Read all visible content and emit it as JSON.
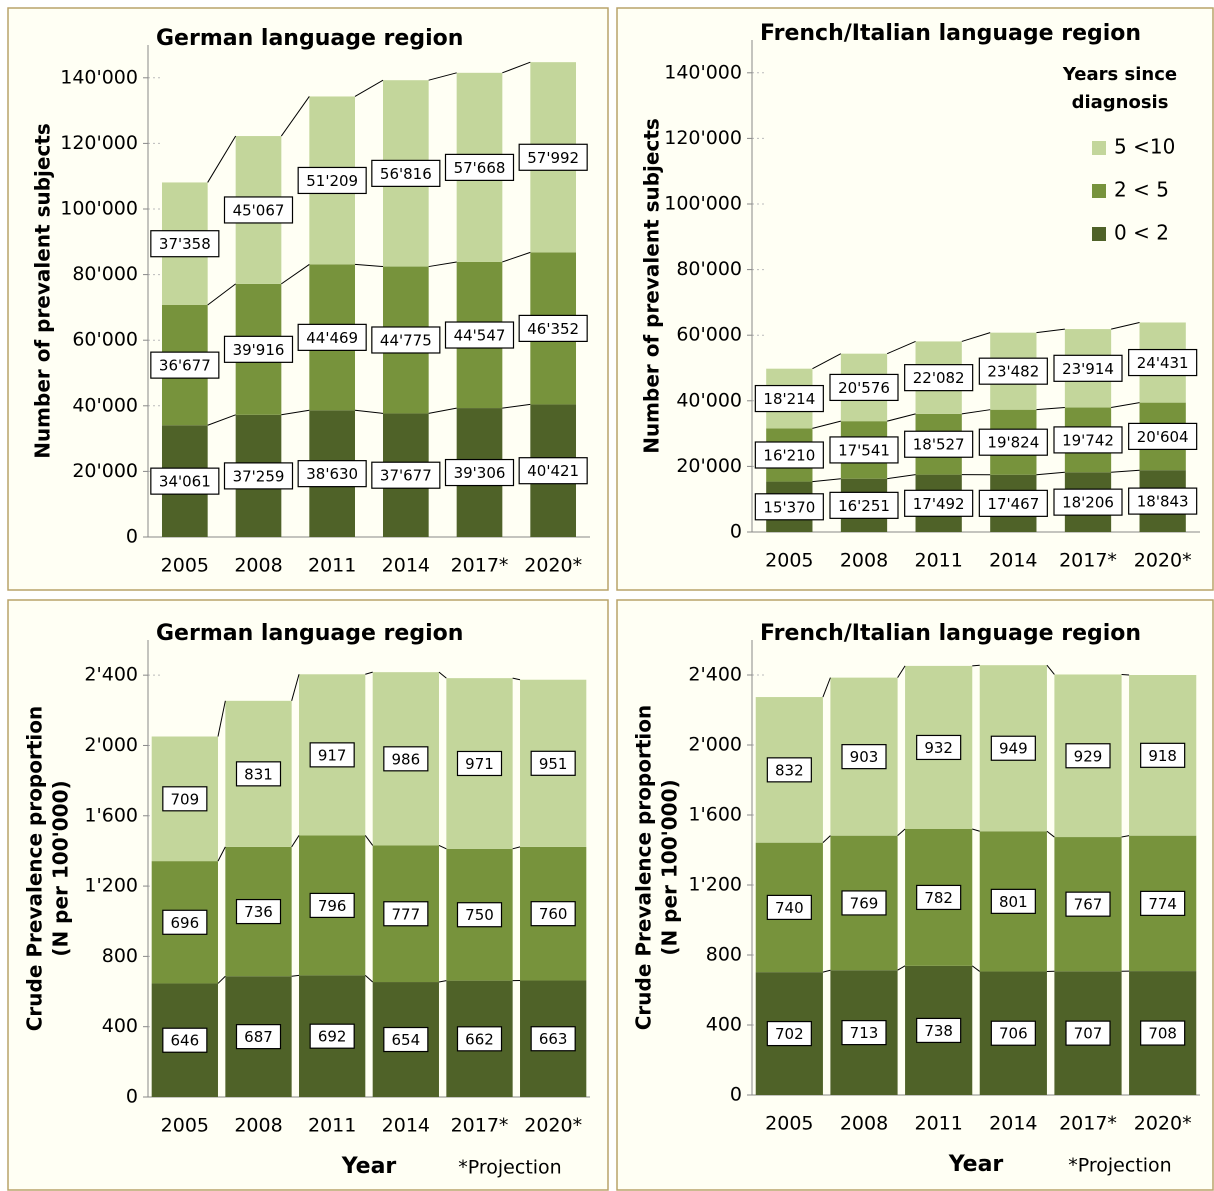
{
  "chart_data": [
    {
      "type": "stacked_bar",
      "title": "German language region",
      "ylabel": "Number of prevalent subjects",
      "categories": [
        "2005",
        "2008",
        "2011",
        "2014",
        "2017*",
        "2020*"
      ],
      "series": [
        {
          "name": "0 < 2",
          "color": "#4f6228",
          "values": [
            34061,
            37259,
            38630,
            37677,
            39306,
            40421
          ],
          "value_labels": [
            "34'061",
            "37'259",
            "38'630",
            "37'677",
            "39'306",
            "40'421"
          ]
        },
        {
          "name": "2 < 5",
          "color": "#77933c",
          "values": [
            36677,
            39916,
            44469,
            44775,
            44547,
            46352
          ],
          "value_labels": [
            "36'677",
            "39'916",
            "44'469",
            "44'775",
            "44'547",
            "46'352"
          ]
        },
        {
          "name": "5 <10",
          "color": "#c3d69b",
          "values": [
            37358,
            45067,
            51209,
            56816,
            57668,
            57992
          ],
          "value_labels": [
            "37'358",
            "45'067",
            "51'209",
            "56'816",
            "57'668",
            "57'992"
          ]
        }
      ],
      "ylim": [
        0,
        150000
      ],
      "yticks": [
        0,
        {
          "value": 20000,
          "label": "20'000"
        },
        {
          "value": 40000,
          "label": "40'000"
        },
        {
          "value": 60000,
          "label": "60'000"
        },
        {
          "value": 80000,
          "label": "80'000"
        },
        {
          "value": 100000,
          "label": "100'000"
        },
        {
          "value": 120000,
          "label": "120'000"
        },
        {
          "value": 140000,
          "label": "140'000"
        }
      ],
      "legend": false
    },
    {
      "type": "stacked_bar",
      "title": "French/Italian language region",
      "ylabel": "Number of prevalent subjects",
      "categories": [
        "2005",
        "2008",
        "2011",
        "2014",
        "2017*",
        "2020*"
      ],
      "series": [
        {
          "name": "0 < 2",
          "color": "#4f6228",
          "values": [
            15370,
            16251,
            17492,
            17467,
            18206,
            18843
          ],
          "value_labels": [
            "15'370",
            "16'251",
            "17'492",
            "17'467",
            "18'206",
            "18'843"
          ]
        },
        {
          "name": "2 < 5",
          "color": "#77933c",
          "values": [
            16210,
            17541,
            18527,
            19824,
            19742,
            20604
          ],
          "value_labels": [
            "16'210",
            "17'541",
            "18'527",
            "19'824",
            "19'742",
            "20'604"
          ]
        },
        {
          "name": "5 <10",
          "color": "#c3d69b",
          "values": [
            18214,
            20576,
            22082,
            23482,
            23914,
            24431
          ],
          "value_labels": [
            "18'214",
            "20'576",
            "22'082",
            "23'482",
            "23'914",
            "24'431"
          ]
        }
      ],
      "ylim": [
        0,
        150000
      ],
      "yticks": [
        0,
        {
          "value": 20000,
          "label": "20'000"
        },
        {
          "value": 40000,
          "label": "40'000"
        },
        {
          "value": 60000,
          "label": "60'000"
        },
        {
          "value": 80000,
          "label": "80'000"
        },
        {
          "value": 100000,
          "label": "100'000"
        },
        {
          "value": 120000,
          "label": "120'000"
        },
        {
          "value": 140000,
          "label": "140'000"
        }
      ],
      "legend": true,
      "legend_title": [
        "Years since",
        "diagnosis"
      ]
    },
    {
      "type": "stacked_bar",
      "title": "German language region",
      "ylabel": [
        "Crude Prevalence proportion",
        "(N per 100'000)"
      ],
      "xlabel": "Year",
      "note": "*Projection",
      "categories": [
        "2005",
        "2008",
        "2011",
        "2014",
        "2017*",
        "2020*"
      ],
      "series": [
        {
          "name": "0 < 2",
          "color": "#4f6228",
          "values": [
            646,
            687,
            692,
            654,
            662,
            663
          ]
        },
        {
          "name": "2 < 5",
          "color": "#77933c",
          "values": [
            696,
            736,
            796,
            777,
            750,
            760
          ]
        },
        {
          "name": "5 <10",
          "color": "#c3d69b",
          "values": [
            709,
            831,
            917,
            986,
            971,
            951
          ]
        }
      ],
      "ylim": [
        0,
        2600
      ],
      "yticks": [
        0,
        400,
        800,
        {
          "value": 1200,
          "label": "1'200"
        },
        {
          "value": 1600,
          "label": "1'600"
        },
        {
          "value": 2000,
          "label": "2'000"
        },
        {
          "value": 2400,
          "label": "2'400"
        }
      ],
      "legend": false
    },
    {
      "type": "stacked_bar",
      "title": "French/Italian language region",
      "ylabel": [
        "Crude Prevalence proportion",
        "(N per 100'000)"
      ],
      "xlabel": "Year",
      "note": "*Projection",
      "categories": [
        "2005",
        "2008",
        "2011",
        "2014",
        "2017*",
        "2020*"
      ],
      "series": [
        {
          "name": "0 < 2",
          "color": "#4f6228",
          "values": [
            702,
            713,
            738,
            706,
            707,
            708
          ]
        },
        {
          "name": "2 < 5",
          "color": "#77933c",
          "values": [
            740,
            769,
            782,
            801,
            767,
            774
          ]
        },
        {
          "name": "5 <10",
          "color": "#c3d69b",
          "values": [
            832,
            903,
            932,
            949,
            929,
            918
          ]
        }
      ],
      "ylim": [
        0,
        2600
      ],
      "yticks": [
        0,
        400,
        800,
        {
          "value": 1200,
          "label": "1'200"
        },
        {
          "value": 1600,
          "label": "1'600"
        },
        {
          "value": 2000,
          "label": "2'000"
        },
        {
          "value": 2400,
          "label": "2'400"
        }
      ],
      "legend": false
    }
  ]
}
